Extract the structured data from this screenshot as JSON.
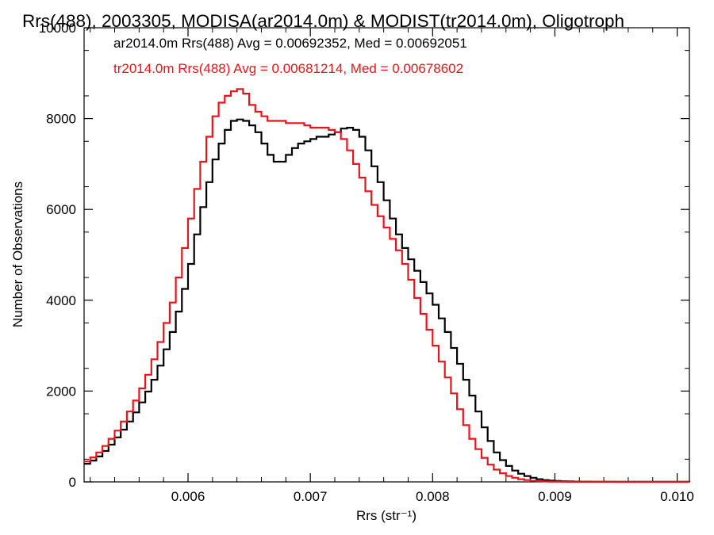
{
  "chart_data": {
    "type": "line",
    "step": true,
    "title": "Rrs(488), 2003305, MODISA(ar2014.0m) & MODIST(tr2014.0m), Oligotroph",
    "xlabel": "Rrs (str⁻¹)",
    "ylabel": "Number of Observations",
    "xlim": [
      0.00515,
      0.0101
    ],
    "ylim": [
      0,
      10000
    ],
    "xticks": [
      "0.006",
      "0.007",
      "0.008",
      "0.009",
      "0.010"
    ],
    "yticks": [
      "0",
      "2000",
      "4000",
      "6000",
      "8000",
      "10000"
    ],
    "grid": false,
    "legend_position": "top-left",
    "annotations": [
      {
        "text": "ar2014.0m Rrs(488) Avg = 0.00692352, Med = 0.00692051",
        "color": "#000000"
      },
      {
        "text": "tr2014.0m Rrs(488) Avg = 0.00681214, Med = 0.00678602",
        "color": "#e8141c"
      }
    ],
    "x": [
      0.00515,
      0.0052,
      0.00525,
      0.0053,
      0.00535,
      0.0054,
      0.00545,
      0.0055,
      0.00555,
      0.0056,
      0.00565,
      0.0057,
      0.00575,
      0.0058,
      0.00585,
      0.0059,
      0.00595,
      0.006,
      0.00605,
      0.0061,
      0.00615,
      0.0062,
      0.00625,
      0.0063,
      0.00635,
      0.0064,
      0.00645,
      0.0065,
      0.00655,
      0.0066,
      0.00665,
      0.0067,
      0.00675,
      0.0068,
      0.00685,
      0.0069,
      0.00695,
      0.007,
      0.00705,
      0.0071,
      0.00715,
      0.0072,
      0.00725,
      0.0073,
      0.00735,
      0.0074,
      0.00745,
      0.0075,
      0.00755,
      0.0076,
      0.00765,
      0.0077,
      0.00775,
      0.0078,
      0.00785,
      0.0079,
      0.00795,
      0.008,
      0.00805,
      0.0081,
      0.00815,
      0.0082,
      0.00825,
      0.0083,
      0.00835,
      0.0084,
      0.00845,
      0.0085,
      0.00855,
      0.0086,
      0.00865,
      0.0087,
      0.00875,
      0.0088,
      0.00885,
      0.0089,
      0.00895,
      0.009,
      0.00905,
      0.0091,
      0.00915,
      0.0092,
      0.0093,
      0.0094,
      0.0095,
      0.0096,
      0.0097,
      0.0098,
      0.0099,
      0.0101
    ],
    "series": [
      {
        "color": "#000000",
        "values": [
          400,
          470,
          560,
          680,
          820,
          980,
          1150,
          1330,
          1530,
          1750,
          1990,
          2250,
          2560,
          2920,
          3300,
          3750,
          4250,
          4800,
          5450,
          6050,
          6600,
          7100,
          7450,
          7750,
          7950,
          7980,
          7950,
          7850,
          7700,
          7450,
          7200,
          7050,
          7050,
          7200,
          7350,
          7450,
          7500,
          7550,
          7600,
          7600,
          7650,
          7700,
          7780,
          7800,
          7750,
          7600,
          7300,
          6950,
          6600,
          6200,
          5800,
          5450,
          5150,
          4900,
          4650,
          4400,
          4150,
          3900,
          3600,
          3300,
          2950,
          2600,
          2250,
          1900,
          1550,
          1200,
          900,
          650,
          480,
          350,
          250,
          180,
          130,
          90,
          60,
          40,
          28,
          20,
          14,
          10,
          7,
          5,
          4,
          3,
          2,
          2,
          1,
          1,
          1,
          0
        ]
      },
      {
        "color": "#e8141c",
        "values": [
          450,
          540,
          650,
          790,
          950,
          1130,
          1330,
          1550,
          1790,
          2060,
          2360,
          2700,
          3080,
          3500,
          3950,
          4500,
          5150,
          5800,
          6450,
          7050,
          7600,
          8050,
          8350,
          8500,
          8600,
          8650,
          8550,
          8300,
          8150,
          8050,
          7950,
          7950,
          7950,
          7900,
          7900,
          7900,
          7850,
          7800,
          7800,
          7800,
          7750,
          7700,
          7550,
          7300,
          7000,
          6700,
          6400,
          6100,
          5850,
          5600,
          5350,
          5100,
          4800,
          4450,
          4050,
          3700,
          3350,
          3000,
          2650,
          2300,
          1950,
          1600,
          1250,
          950,
          720,
          530,
          380,
          270,
          190,
          130,
          90,
          60,
          40,
          25,
          16,
          10,
          7,
          5,
          3,
          2,
          2,
          1,
          1,
          1,
          0,
          0,
          0,
          0,
          0,
          0
        ]
      }
    ]
  }
}
